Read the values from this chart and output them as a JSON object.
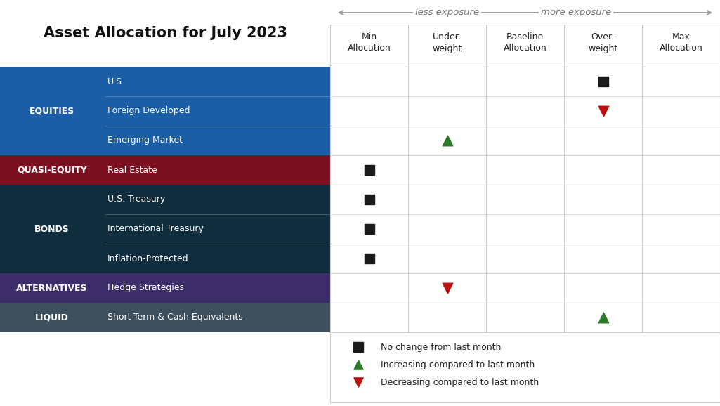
{
  "title": "Asset Allocation for July 2023",
  "col_headers": [
    "Min\nAllocation",
    "Under-\nweight",
    "Baseline\nAllocation",
    "Over-\nweight",
    "Max\nAllocation"
  ],
  "arrow_left_label": "less exposure",
  "arrow_right_label": "more exposure",
  "categories": [
    {
      "label": "EQUITIES",
      "color": "#1B5EA6",
      "rows": [
        "U.S.",
        "Foreign Developed",
        "Emerging Market"
      ]
    },
    {
      "label": "QUASI-EQUITY",
      "color": "#7B1020",
      "rows": [
        "Real Estate"
      ]
    },
    {
      "label": "BONDS",
      "color": "#0F2D3D",
      "rows": [
        "U.S. Treasury",
        "International Treasury",
        "Inflation-Protected"
      ]
    },
    {
      "label": "ALTERNATIVES",
      "color": "#3D2E6B",
      "rows": [
        "Hedge Strategies"
      ]
    },
    {
      "label": "LIQUID",
      "color": "#3D4F5C",
      "rows": [
        "Short-Term & Cash Equivalents"
      ]
    }
  ],
  "markers": [
    {
      "row": "U.S.",
      "col": 3,
      "type": "square",
      "color": "#1a1a1a"
    },
    {
      "row": "Foreign Developed",
      "col": 3,
      "type": "triangle_down",
      "color": "#bb1111"
    },
    {
      "row": "Emerging Market",
      "col": 1,
      "type": "triangle_up",
      "color": "#2a7a2a"
    },
    {
      "row": "Real Estate",
      "col": 0,
      "type": "square",
      "color": "#1a1a1a"
    },
    {
      "row": "U.S. Treasury",
      "col": 0,
      "type": "square",
      "color": "#1a1a1a"
    },
    {
      "row": "International Treasury",
      "col": 0,
      "type": "square",
      "color": "#1a1a1a"
    },
    {
      "row": "Inflation-Protected",
      "col": 0,
      "type": "square",
      "color": "#1a1a1a"
    },
    {
      "row": "Hedge Strategies",
      "col": 1,
      "type": "triangle_down",
      "color": "#bb1111"
    },
    {
      "row": "Short-Term & Cash Equivalents",
      "col": 3,
      "type": "triangle_up",
      "color": "#2a7a2a"
    }
  ],
  "legend": [
    {
      "type": "square",
      "color": "#1a1a1a",
      "label": "No change from last month"
    },
    {
      "type": "triangle_up",
      "color": "#2a7a2a",
      "label": "Increasing compared to last month"
    },
    {
      "type": "triangle_down",
      "color": "#bb1111",
      "label": "Decreasing compared to last month"
    }
  ],
  "grid_line_color": "#cccccc",
  "fig_width": 10.25,
  "fig_height": 5.78,
  "dpi": 100
}
